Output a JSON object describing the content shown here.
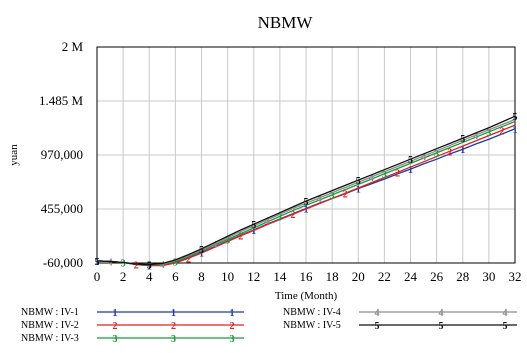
{
  "chart_data": {
    "type": "line",
    "title": "NBMW",
    "xlabel": "Time (Month)",
    "ylabel": "yuan",
    "xlim": [
      0,
      32
    ],
    "ylim": [
      -60000,
      2000000
    ],
    "x_ticks": [
      0,
      2,
      4,
      6,
      8,
      10,
      12,
      14,
      16,
      18,
      20,
      22,
      24,
      26,
      28,
      30,
      32
    ],
    "x_tick_labels": [
      "0",
      "2",
      "4",
      "6",
      "8",
      "10",
      "12",
      "14",
      "16",
      "18",
      "20",
      "22",
      "24",
      "26",
      "28",
      "30",
      "32"
    ],
    "y_ticks": [
      -60000,
      455000,
      970000,
      1485000,
      2000000
    ],
    "y_tick_labels": [
      "-60,000",
      "455,000",
      "970,000",
      "1.485 M",
      "2 M"
    ],
    "grid": true,
    "legend_position": "bottom",
    "x": [
      0,
      1,
      2,
      3,
      4,
      5,
      6,
      7,
      8,
      9,
      10,
      11,
      12,
      13,
      14,
      15,
      16,
      17,
      18,
      19,
      20,
      21,
      22,
      23,
      24,
      25,
      26,
      27,
      28,
      29,
      30,
      31,
      32
    ],
    "series": [
      {
        "name": "NBMW : IV-1",
        "marker": "1",
        "color": "#1f3aa6",
        "values": [
          -40000,
          -45000,
          -55000,
          -75000,
          -85000,
          -80000,
          -55000,
          -10000,
          40000,
          95000,
          150000,
          205000,
          255000,
          310000,
          360000,
          410000,
          460000,
          510000,
          555000,
          600000,
          650000,
          695000,
          740000,
          790000,
          835000,
          885000,
          930000,
          980000,
          1025000,
          1075000,
          1120000,
          1170000,
          1220000
        ]
      },
      {
        "name": "NBMW : IV-2",
        "marker": "2",
        "color": "#e02020",
        "values": [
          -40000,
          -45000,
          -55000,
          -75000,
          -85000,
          -85000,
          -60000,
          -15000,
          35000,
          90000,
          145000,
          200000,
          250000,
          305000,
          355000,
          405000,
          455000,
          505000,
          555000,
          605000,
          655000,
          705000,
          755000,
          805000,
          855000,
          905000,
          955000,
          1005000,
          1055000,
          1105000,
          1155000,
          1205000,
          1255000
        ]
      },
      {
        "name": "NBMW : IV-3",
        "marker": "3",
        "color": "#1a9a3a",
        "values": [
          -40000,
          -45000,
          -55000,
          -70000,
          -80000,
          -75000,
          -45000,
          0,
          55000,
          110000,
          165000,
          220000,
          275000,
          330000,
          385000,
          440000,
          490000,
          540000,
          590000,
          640000,
          690000,
          740000,
          790000,
          840000,
          890000,
          940000,
          990000,
          1040000,
          1090000,
          1140000,
          1190000,
          1240000,
          1290000
        ]
      },
      {
        "name": "NBMW : IV-4",
        "marker": "4",
        "color": "#8c8c8c",
        "values": [
          -40000,
          -45000,
          -55000,
          -70000,
          -75000,
          -70000,
          -35000,
          10000,
          65000,
          120000,
          180000,
          240000,
          295000,
          350000,
          405000,
          460000,
          510000,
          560000,
          610000,
          660000,
          710000,
          760000,
          810000,
          860000,
          910000,
          960000,
          1010000,
          1060000,
          1110000,
          1160000,
          1210000,
          1260000,
          1310000
        ]
      },
      {
        "name": "NBMW : IV-5",
        "marker": "5",
        "color": "#111111",
        "values": [
          -40000,
          -45000,
          -55000,
          -70000,
          -75000,
          -65000,
          -30000,
          20000,
          75000,
          135000,
          195000,
          255000,
          310000,
          365000,
          420000,
          475000,
          530000,
          580000,
          630000,
          680000,
          730000,
          780000,
          830000,
          880000,
          930000,
          980000,
          1030000,
          1080000,
          1130000,
          1180000,
          1230000,
          1285000,
          1340000
        ]
      }
    ]
  }
}
